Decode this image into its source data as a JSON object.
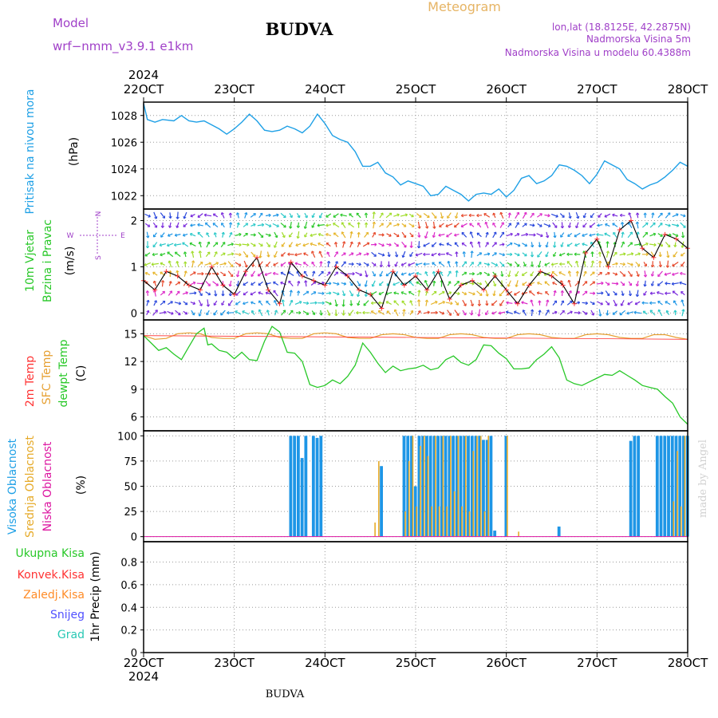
{
  "header": {
    "model_label": "Model",
    "model_name": "wrf−nmm_v3.9.1 e1km",
    "title": "BUDVA",
    "meteogram_label": "Meteogram",
    "lonlat": "lon,lat (18.8125E, 42.2875N)",
    "altitude": "Nadmorska Visina 5m",
    "model_altitude": "Nadmorska Visina u modelu 60.4388m",
    "footer_title": "BUDVA",
    "credit": "made by Angel"
  },
  "time_axis": {
    "year": "2024",
    "ticks": [
      "22OCT",
      "23OCT",
      "24OCT",
      "25OCT",
      "26OCT",
      "27OCT",
      "28OCT"
    ],
    "range_hours": [
      0,
      144
    ]
  },
  "colors": {
    "pressure": "#1ea0e6",
    "temp_2m": "#ff3232",
    "sfc_temp": "#e6a032",
    "dewpt": "#28c828",
    "high_cloud": "#1e96e6",
    "mid_cloud": "#e6aa28",
    "low_cloud": "#dc14a0",
    "total_precip": "#28c828",
    "conv_precip": "#ff3232",
    "frz_precip": "#ff8c28",
    "snow": "#5050ff",
    "graupel": "#28c8b4",
    "wind_speed_line": "#000000",
    "model_text": "#a040c8",
    "meteogram_text": "#e6b464",
    "credit_text": "#d2d2d2"
  },
  "chart_data": [
    {
      "type": "line",
      "panel": "pressure",
      "ylabel": [
        "Pritisak na nivou mora",
        "(hPa)"
      ],
      "yticks": [
        1022,
        1024,
        1026,
        1028
      ],
      "ylim": [
        1021,
        1029
      ],
      "grid": true,
      "series": [
        {
          "x": [
            0,
            1,
            3,
            5,
            8,
            10,
            12,
            14,
            16,
            18,
            20,
            22,
            24,
            26,
            28,
            30,
            32,
            34,
            36,
            38,
            40,
            42,
            44,
            46,
            48,
            50,
            52,
            54,
            56,
            58,
            60,
            62,
            64,
            66,
            68,
            70,
            72,
            74,
            76,
            78,
            80,
            82,
            84,
            86,
            88,
            90,
            92,
            94,
            96,
            98,
            100,
            102,
            104,
            106,
            108,
            110,
            112,
            114,
            116,
            118,
            120,
            122,
            124,
            126,
            128,
            130,
            132,
            134,
            136,
            138,
            140,
            142,
            144
          ],
          "values": [
            1028.9,
            1027.7,
            1027.5,
            1027.7,
            1027.6,
            1028.0,
            1027.6,
            1027.5,
            1027.6,
            1027.3,
            1027.0,
            1026.6,
            1027.0,
            1027.5,
            1028.1,
            1027.6,
            1026.9,
            1026.8,
            1026.9,
            1027.2,
            1027.0,
            1026.7,
            1027.2,
            1028.1,
            1027.4,
            1026.5,
            1026.2,
            1026.0,
            1025.3,
            1024.2,
            1024.2,
            1024.5,
            1023.7,
            1023.4,
            1022.8,
            1023.1,
            1022.9,
            1022.7,
            1022.0,
            1022.1,
            1022.7,
            1022.4,
            1022.1,
            1021.6,
            1022.1,
            1022.2,
            1022.1,
            1022.5,
            1021.9,
            1022.4,
            1023.3,
            1023.5,
            1022.9,
            1023.1,
            1023.5,
            1024.3,
            1024.2,
            1023.9,
            1023.5,
            1022.9,
            1023.6,
            1024.6,
            1024.3,
            1024.0,
            1023.2,
            1022.9,
            1022.5,
            1022.8,
            1023.0,
            1023.4,
            1023.9,
            1024.5,
            1024.2
          ]
        }
      ]
    },
    {
      "type": "line",
      "panel": "wind",
      "ylabel": [
        "10m Vjetar",
        "Brzina i Pravac",
        "(m/s)"
      ],
      "compass": [
        "N",
        "W",
        "E",
        "S"
      ],
      "yticks": [
        0,
        1,
        2
      ],
      "ylim": [
        -0.15,
        2.25
      ],
      "grid": true,
      "series": [
        {
          "name": "speed",
          "x": [
            0,
            3,
            6,
            9,
            12,
            15,
            18,
            21,
            24,
            27,
            30,
            33,
            36,
            39,
            42,
            45,
            48,
            51,
            54,
            57,
            60,
            63,
            66,
            69,
            72,
            75,
            78,
            81,
            84,
            87,
            90,
            93,
            96,
            99,
            102,
            105,
            108,
            111,
            114,
            117,
            120,
            123,
            126,
            129,
            132,
            135,
            138,
            141,
            144
          ],
          "values": [
            0.7,
            0.5,
            0.9,
            0.8,
            0.6,
            0.5,
            1.0,
            0.6,
            0.4,
            0.9,
            1.2,
            0.5,
            0.2,
            1.1,
            0.8,
            0.7,
            0.6,
            1.0,
            0.8,
            0.5,
            0.4,
            0.1,
            0.9,
            0.6,
            0.8,
            0.5,
            0.9,
            0.3,
            0.6,
            0.7,
            0.5,
            0.8,
            0.5,
            0.2,
            0.6,
            0.9,
            0.8,
            0.6,
            0.2,
            1.3,
            1.6,
            1.0,
            1.8,
            2.0,
            1.4,
            1.2,
            1.7,
            1.6,
            1.4
          ]
        }
      ]
    },
    {
      "type": "line",
      "panel": "temperature",
      "ylabel": [
        "2m Temp",
        "SFC Temp",
        "dewpt Temp",
        "(C)"
      ],
      "yticks": [
        6,
        9,
        12,
        15
      ],
      "ylim": [
        4.5,
        16.5
      ],
      "grid": true,
      "series": [
        {
          "name": "sfc",
          "x": [
            0,
            3,
            6,
            9,
            12,
            15,
            18,
            21,
            24,
            27,
            30,
            33,
            36,
            39,
            42,
            45,
            48,
            51,
            54,
            57,
            60,
            63,
            66,
            69,
            72,
            75,
            78,
            81,
            84,
            87,
            90,
            93,
            96,
            99,
            102,
            105,
            108,
            111,
            114,
            117,
            120,
            123,
            126,
            129,
            132,
            135,
            138,
            141,
            144
          ],
          "values": [
            14.8,
            14.4,
            14.5,
            15.0,
            15.1,
            15.0,
            14.6,
            14.5,
            14.5,
            15.0,
            15.1,
            15.0,
            14.6,
            14.5,
            14.5,
            15.0,
            15.1,
            15.0,
            14.6,
            14.5,
            14.5,
            14.9,
            15.0,
            14.9,
            14.6,
            14.5,
            14.5,
            14.9,
            15.0,
            14.9,
            14.6,
            14.5,
            14.5,
            14.9,
            15.0,
            14.9,
            14.6,
            14.5,
            14.5,
            14.9,
            15.0,
            14.9,
            14.6,
            14.5,
            14.5,
            14.9,
            14.9,
            14.6,
            14.4
          ]
        },
        {
          "name": "dewpt",
          "x": [
            0,
            2,
            4,
            6,
            8,
            10,
            12,
            14,
            16,
            17,
            18,
            20,
            22,
            24,
            26,
            28,
            30,
            32,
            34,
            36,
            38,
            40,
            42,
            44,
            46,
            48,
            50,
            52,
            54,
            56,
            58,
            60,
            62,
            64,
            66,
            68,
            70,
            72,
            74,
            76,
            78,
            80,
            82,
            84,
            86,
            88,
            90,
            92,
            94,
            96,
            98,
            100,
            102,
            104,
            106,
            108,
            110,
            112,
            114,
            116,
            118,
            120,
            122,
            124,
            126,
            128,
            130,
            132,
            134,
            136,
            138,
            140,
            142,
            144
          ],
          "values": [
            14.8,
            14.0,
            13.2,
            13.5,
            12.8,
            12.2,
            13.6,
            15.0,
            15.6,
            13.8,
            13.9,
            13.2,
            13.0,
            12.3,
            13.0,
            12.2,
            12.1,
            14.2,
            15.8,
            15.2,
            13.0,
            12.9,
            12.0,
            9.5,
            9.2,
            9.4,
            10.0,
            9.6,
            10.4,
            11.6,
            14.0,
            13.0,
            11.8,
            10.8,
            11.5,
            11.0,
            11.2,
            11.3,
            11.6,
            11.1,
            11.3,
            12.2,
            12.6,
            11.9,
            11.6,
            12.2,
            13.8,
            13.7,
            12.9,
            12.3,
            11.2,
            11.2,
            11.3,
            12.2,
            12.8,
            13.6,
            12.4,
            10.0,
            9.6,
            9.4,
            9.8,
            10.2,
            10.6,
            10.5,
            11.0,
            10.5,
            10.0,
            9.4,
            9.2,
            9.0,
            8.2,
            7.5,
            6.0,
            5.2
          ]
        },
        {
          "name": "temp_2m",
          "x": [
            0,
            144
          ],
          "values": [
            14.8,
            14.4
          ]
        }
      ]
    },
    {
      "type": "bar",
      "panel": "clouds",
      "ylabel": [
        "Visoka Oblacnost",
        "Srednja Oblacnost",
        "Niska Oblacnost",
        "(%)"
      ],
      "yticks": [
        0,
        25,
        50,
        75,
        100
      ],
      "ylim": [
        -5,
        105
      ],
      "grid": true,
      "series": [
        {
          "name": "high",
          "x": [
            39,
            40,
            41,
            42,
            43,
            45,
            46,
            47,
            63,
            69,
            70,
            71,
            72,
            73,
            74,
            75,
            76,
            77,
            78,
            79,
            80,
            81,
            82,
            83,
            84,
            85,
            86,
            87,
            88,
            89,
            90,
            91,
            92,
            93,
            96,
            110,
            129,
            130,
            131,
            136,
            137,
            138,
            139,
            140,
            141,
            142,
            143,
            144
          ],
          "values": [
            100,
            100,
            100,
            78,
            100,
            100,
            98,
            100,
            70,
            100,
            100,
            100,
            50,
            100,
            100,
            100,
            100,
            100,
            100,
            100,
            100,
            100,
            100,
            100,
            100,
            100,
            100,
            100,
            100,
            100,
            96,
            96,
            100,
            6,
            100,
            10,
            95,
            100,
            100,
            100,
            100,
            100,
            100,
            100,
            100,
            100,
            100,
            100
          ]
        },
        {
          "name": "mid",
          "x": [
            61,
            62,
            69,
            70,
            71,
            72,
            73,
            74,
            75,
            76,
            77,
            78,
            79,
            80,
            81,
            82,
            83,
            84,
            85,
            86,
            87,
            88,
            89,
            90,
            91,
            96,
            99,
            140,
            141,
            142,
            143
          ],
          "values": [
            14,
            75,
            25,
            75,
            100,
            30,
            90,
            100,
            80,
            30,
            100,
            30,
            100,
            30,
            100,
            45,
            100,
            30,
            100,
            25,
            85,
            100,
            100,
            25,
            100,
            100,
            5,
            35,
            85,
            30,
            100
          ]
        },
        {
          "name": "low",
          "x": [
            0,
            144
          ],
          "values": [
            0,
            0
          ]
        }
      ]
    },
    {
      "type": "line",
      "panel": "precip",
      "ylabel": [
        "1hr Precip (mm)"
      ],
      "legend": [
        "Ukupna Kisa",
        "Konvek.Kisa",
        "Zaledj.Kisa",
        "Snijeg",
        "Grad"
      ],
      "yticks": [
        0,
        0.2,
        0.4,
        0.6,
        0.8
      ],
      "ylim": [
        0,
        0.98
      ],
      "grid": true,
      "series": [
        {
          "name": "total",
          "x": [
            0,
            144
          ],
          "values": [
            0,
            0
          ]
        }
      ]
    }
  ]
}
